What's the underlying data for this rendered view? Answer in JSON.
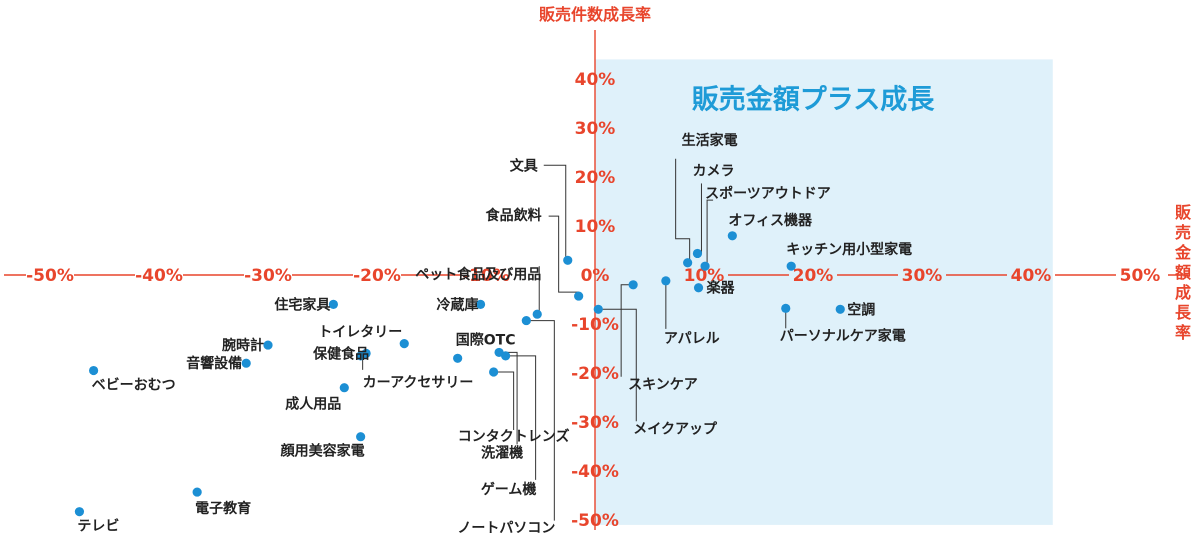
{
  "chart_data": {
    "type": "scatter",
    "xlabel": "販売金額成長率",
    "ylabel": "販売件数成長率",
    "xlim": [
      -50,
      50
    ],
    "ylim": [
      -50,
      40
    ],
    "x_ticks": [
      "-50%",
      "-40%",
      "-30%",
      "-20%",
      "-10%",
      "0%",
      "10%",
      "20%",
      "30%",
      "40%",
      "50%"
    ],
    "y_ticks": [
      "40%",
      "30%",
      "20%",
      "10%",
      "-10%",
      "-20%",
      "-30%",
      "-40%",
      "-50%"
    ],
    "region": {
      "label": "販売金額プラス成長",
      "color": "#dff1fa"
    },
    "point_color": "#1c8fd4",
    "axis_color": "#e8452c",
    "points": [
      {
        "name": "生活家電",
        "x": 8.5,
        "y": 2.5
      },
      {
        "name": "カメラ",
        "x": 9.4,
        "y": 4.4
      },
      {
        "name": "スポーツアウトドア",
        "x": 10.1,
        "y": 1.8
      },
      {
        "name": "オフィス機器",
        "x": 12.6,
        "y": 8.0
      },
      {
        "name": "キッチン用小型家電",
        "x": 18.0,
        "y": 1.8
      },
      {
        "name": "楽器",
        "x": 9.5,
        "y": -2.6
      },
      {
        "name": "アパレル",
        "x": 6.5,
        "y": -1.2
      },
      {
        "name": "空調",
        "x": 22.5,
        "y": -7.0
      },
      {
        "name": "パーソナルケア家電",
        "x": 17.5,
        "y": -6.8
      },
      {
        "name": "スキンケア",
        "x": 3.5,
        "y": -2.0
      },
      {
        "name": "メイクアップ",
        "x": 0.3,
        "y": -7.0
      },
      {
        "name": "文具",
        "x": -2.5,
        "y": 3.0
      },
      {
        "name": "食品飲料",
        "x": -1.5,
        "y": -4.3
      },
      {
        "name": "ペット食品及び用品",
        "x": -5.3,
        "y": -8.0
      },
      {
        "name": "冷蔵庫",
        "x": -10.5,
        "y": -6.0
      },
      {
        "name": "国際OTC",
        "x": -12.6,
        "y": -17.0
      },
      {
        "name": "コンタクトレンズ",
        "x": -9.3,
        "y": -19.8
      },
      {
        "name": "洗濯機",
        "x": -8.8,
        "y": -15.8
      },
      {
        "name": "ゲーム機",
        "x": -8.2,
        "y": -16.5
      },
      {
        "name": "ノートパソコン",
        "x": -6.3,
        "y": -9.3
      },
      {
        "name": "住宅家具",
        "x": -24.0,
        "y": -6.0
      },
      {
        "name": "トイレタリー",
        "x": -17.5,
        "y": -14.0
      },
      {
        "name": "保健食品",
        "x": -21.0,
        "y": -16.0
      },
      {
        "name": "カーアクセサリー",
        "x": -21.5,
        "y": -16.5
      },
      {
        "name": "成人用品",
        "x": -23.0,
        "y": -23.0
      },
      {
        "name": "顔用美容家電",
        "x": -21.5,
        "y": -33.0
      },
      {
        "name": "腕時計",
        "x": -30.0,
        "y": -14.3
      },
      {
        "name": "音響設備",
        "x": -32.0,
        "y": -18.0
      },
      {
        "name": "ベビーおむつ",
        "x": -46.0,
        "y": -19.5
      },
      {
        "name": "電子教育",
        "x": -36.5,
        "y": -44.3
      },
      {
        "name": "テレビ",
        "x": -47.3,
        "y": -48.3
      }
    ]
  }
}
